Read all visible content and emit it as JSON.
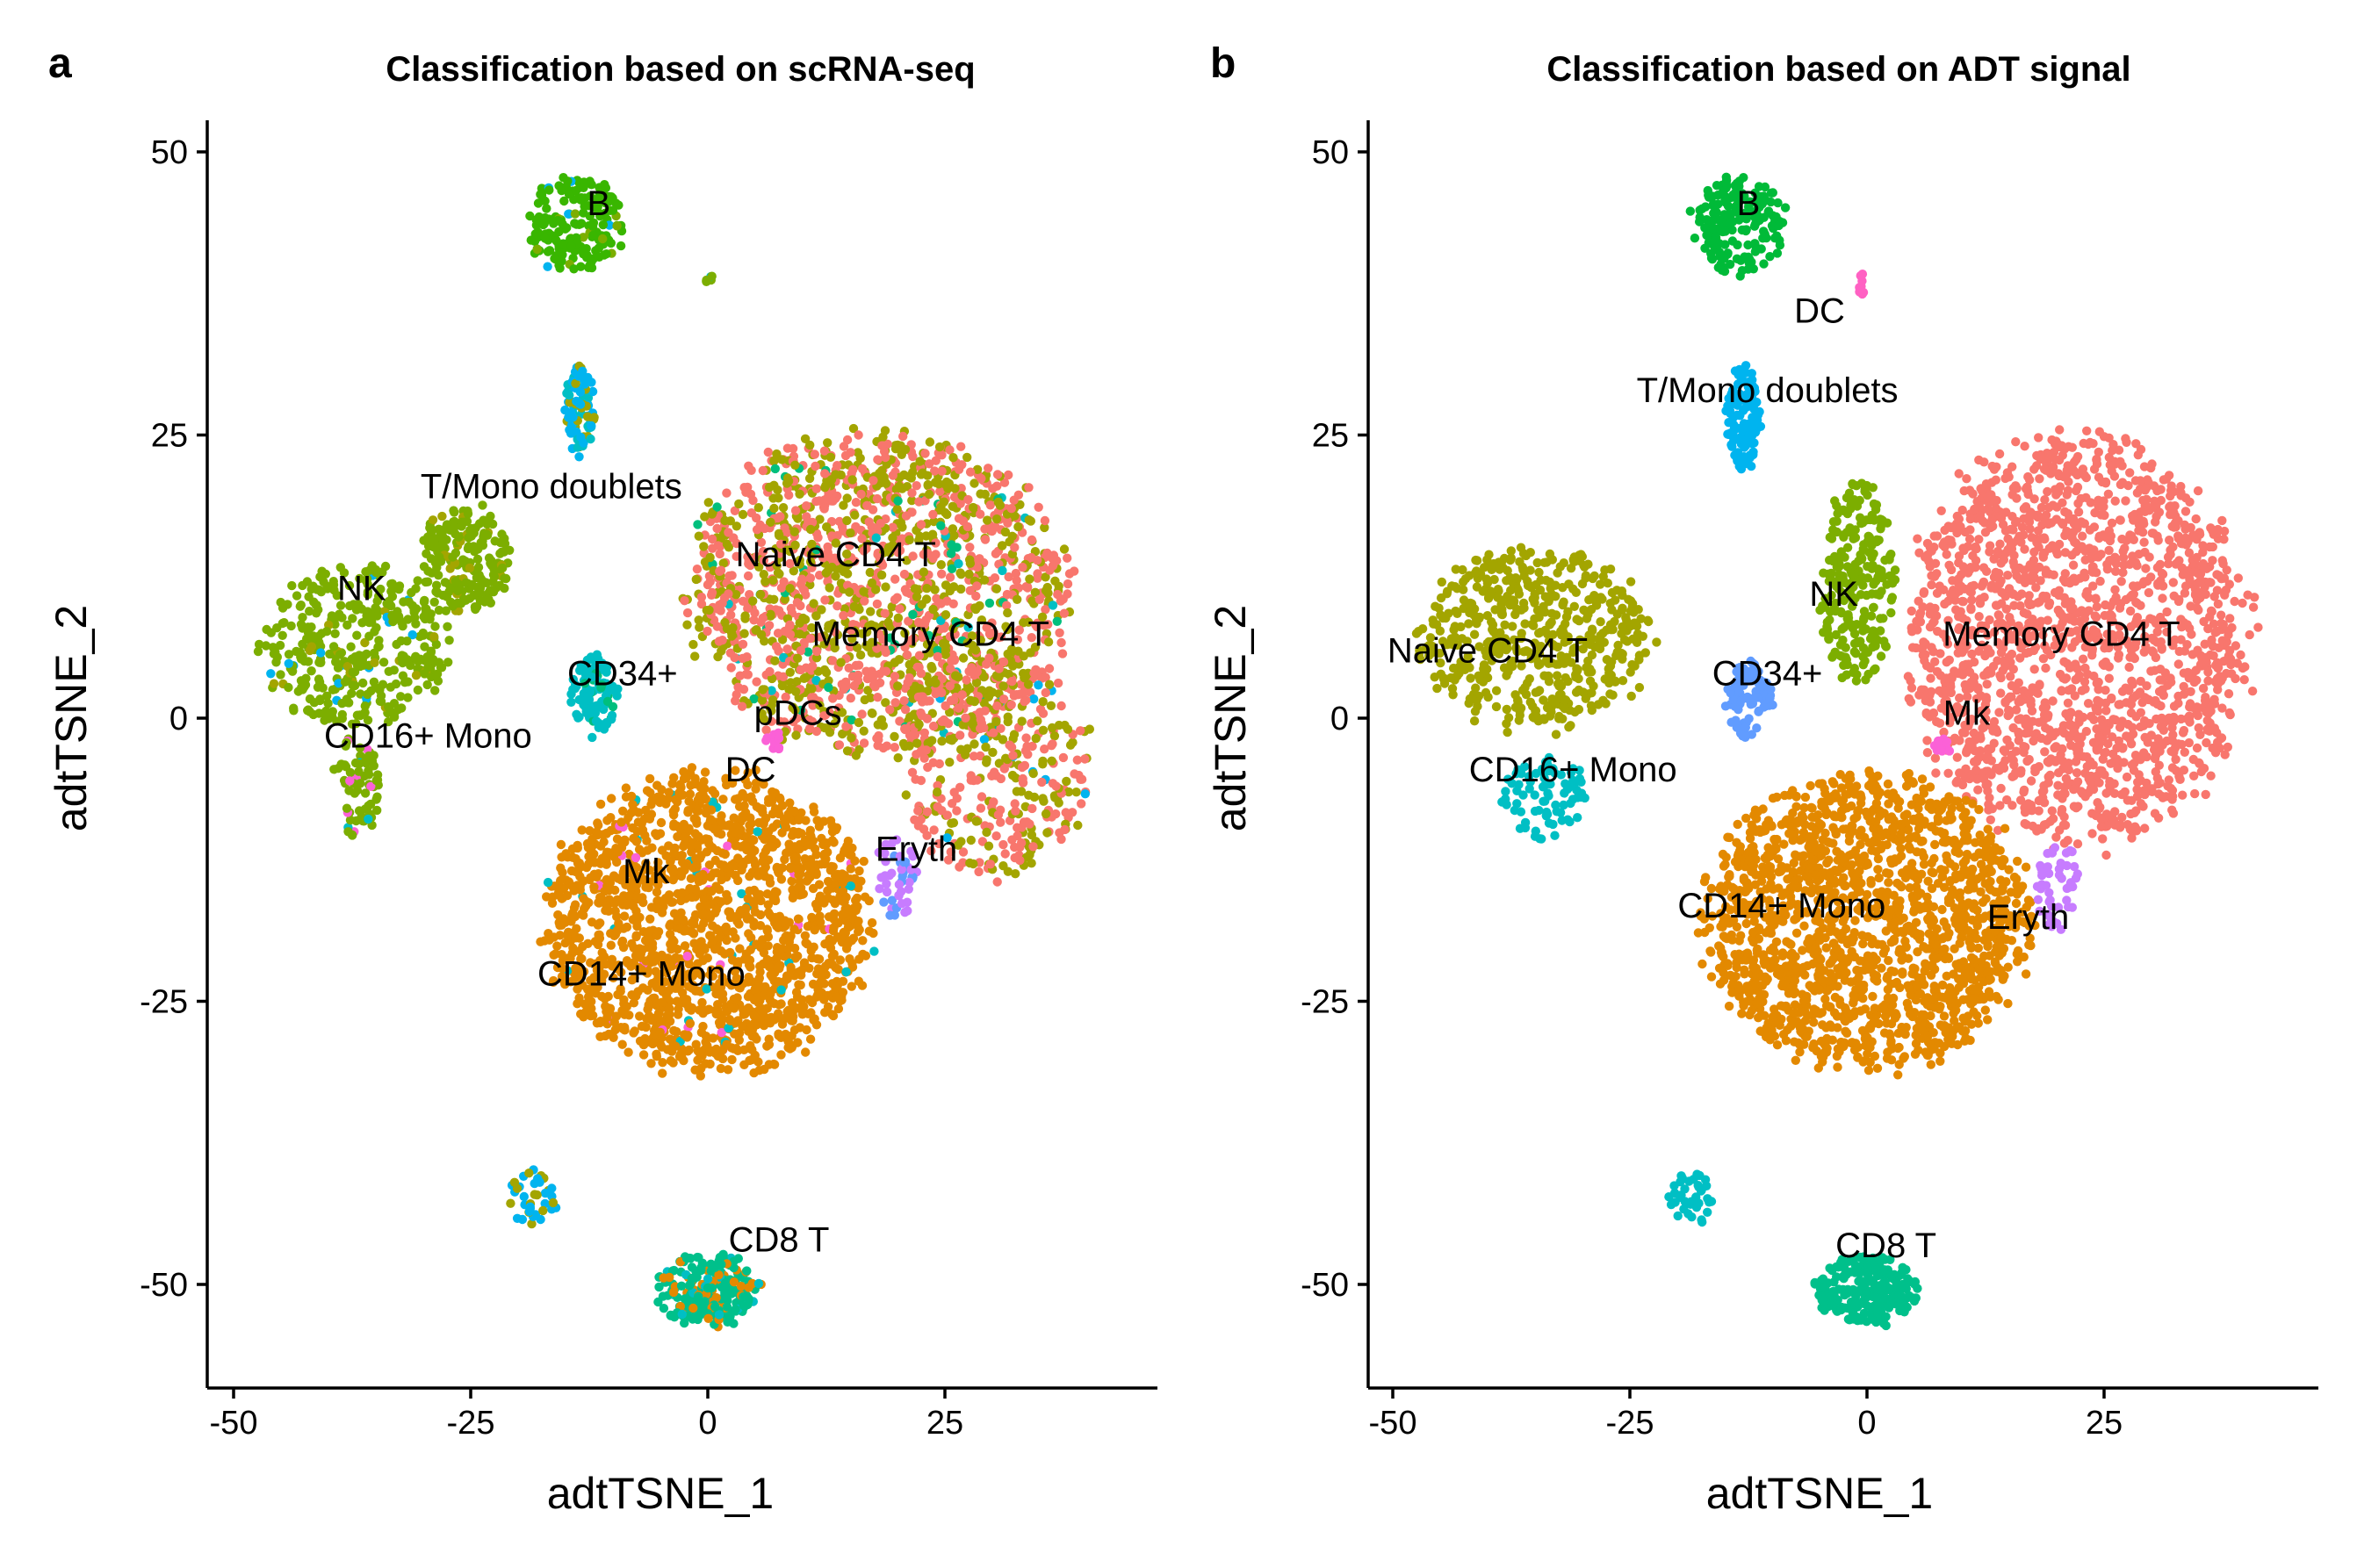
{
  "chart_data": [
    {
      "panel_letter": "a",
      "type": "scatter",
      "title": "Classification based on scRNA-seq",
      "xlabel": "adtTSNE_1",
      "ylabel": "adtTSNE_2",
      "xlim": [
        -52,
        48
      ],
      "ylim": [
        -59,
        53
      ],
      "xticks": [
        -50,
        -25,
        0,
        25
      ],
      "xtick_labels": [
        "-50",
        "-25",
        "0",
        "25"
      ],
      "yticks": [
        -50,
        -25,
        0,
        25,
        50
      ],
      "ytick_labels": [
        "-50",
        "-25",
        "0",
        "25",
        "50"
      ],
      "grid": false,
      "legend": "none",
      "cluster_labels": [
        {
          "text": "B",
          "x": -11.5,
          "y": 45.5
        },
        {
          "text": "T/Mono doublets",
          "x": -16.5,
          "y": 20.5
        },
        {
          "text": "NK",
          "x": -36.5,
          "y": 11.5
        },
        {
          "text": "Naive CD4 T",
          "x": 13.5,
          "y": 14.5
        },
        {
          "text": "Memory CD4 T",
          "x": 23.5,
          "y": 7.5
        },
        {
          "text": "CD34+",
          "x": -9,
          "y": 4
        },
        {
          "text": "pDCs",
          "x": 9.5,
          "y": 0.5
        },
        {
          "text": "CD16+ Mono",
          "x": -29.5,
          "y": -1.5
        },
        {
          "text": "DC",
          "x": 4.5,
          "y": -4.5
        },
        {
          "text": "Eryth",
          "x": 22,
          "y": -11.5
        },
        {
          "text": "Mk",
          "x": -6.5,
          "y": -13.5
        },
        {
          "text": "CD14+ Mono",
          "x": -7,
          "y": -22.5
        },
        {
          "text": "CD8 T",
          "x": 7.5,
          "y": -46
        }
      ],
      "clusters": [
        {
          "name": "B",
          "cx": -14,
          "cy": 43.5,
          "rx": 5,
          "ry": 4.3,
          "n": 180,
          "colors": [
            [
              "#39B600",
              0.9
            ],
            [
              "#7CAE00",
              0.08
            ],
            [
              "#00B4EF",
              0.02
            ]
          ]
        },
        {
          "name": "B small",
          "cx": 0,
          "cy": 39,
          "rx": 0.5,
          "ry": 0.6,
          "n": 5,
          "colors": [
            [
              "#7CAE00",
              0.6
            ],
            [
              "#00BFC4",
              0.4
            ]
          ]
        },
        {
          "name": "T/Mono doublets",
          "cx": -13.5,
          "cy": 27,
          "rx": 1.8,
          "ry": 4,
          "n": 90,
          "colors": [
            [
              "#00B4EF",
              0.45
            ],
            [
              "#A3A500",
              0.35
            ],
            [
              "#00BFC4",
              0.2
            ]
          ]
        },
        {
          "name": "Naive + Memory CD4 T",
          "cx": 18,
          "cy": 11,
          "rx": 20,
          "ry": 14,
          "n": 1600,
          "colors": [
            [
              "#F8766D",
              0.5
            ],
            [
              "#A3A500",
              0.45
            ],
            [
              "#00BF7D",
              0.03
            ],
            [
              "#00BFC4",
              0.02
            ]
          ]
        },
        {
          "name": "CD4 T lower right",
          "cx": 30,
          "cy": -4,
          "rx": 10,
          "ry": 10,
          "n": 360,
          "colors": [
            [
              "#F8766D",
              0.55
            ],
            [
              "#A3A500",
              0.43
            ],
            [
              "#00B4EF",
              0.02
            ]
          ]
        },
        {
          "name": "NK",
          "cx": -37,
          "cy": 6.5,
          "rx": 10,
          "ry": 7,
          "n": 380,
          "colors": [
            [
              "#7CAE00",
              0.92
            ],
            [
              "#A3A500",
              0.05
            ],
            [
              "#00B4EF",
              0.03
            ]
          ]
        },
        {
          "name": "NK upper",
          "cx": -25.5,
          "cy": 14,
          "rx": 4.5,
          "ry": 5,
          "n": 200,
          "colors": [
            [
              "#7CAE00",
              0.9
            ],
            [
              "#A3A500",
              0.1
            ]
          ]
        },
        {
          "name": "NK tail",
          "cx": -37,
          "cy": -6,
          "rx": 2.5,
          "ry": 4.5,
          "n": 70,
          "colors": [
            [
              "#7CAE00",
              0.85
            ],
            [
              "#FB61D7",
              0.08
            ],
            [
              "#00BFC4",
              0.07
            ]
          ]
        },
        {
          "name": "CD34+",
          "cx": -12,
          "cy": 2,
          "rx": 2.5,
          "ry": 3.5,
          "n": 100,
          "colors": [
            [
              "#00BFC4",
              0.8
            ],
            [
              "#00BF7D",
              0.2
            ]
          ]
        },
        {
          "name": "pDCs",
          "cx": 7,
          "cy": -2,
          "rx": 1,
          "ry": 1,
          "n": 15,
          "colors": [
            [
              "#FB61D7",
              1
            ]
          ]
        },
        {
          "name": "CD14+ Mono",
          "cx": 0,
          "cy": -18,
          "rx": 17,
          "ry": 13,
          "n": 1700,
          "colors": [
            [
              "#E38900",
              0.97
            ],
            [
              "#FB61D7",
              0.015
            ],
            [
              "#00BFC4",
              0.015
            ]
          ]
        },
        {
          "name": "Eryth",
          "cx": 20,
          "cy": -14,
          "rx": 2.2,
          "ry": 4,
          "n": 50,
          "colors": [
            [
              "#C77CFF",
              0.7
            ],
            [
              "#619CFF",
              0.3
            ]
          ]
        },
        {
          "name": "CD8 T",
          "cx": 0,
          "cy": -50.5,
          "rx": 5.5,
          "ry": 3.2,
          "n": 220,
          "colors": [
            [
              "#00C08B",
              0.7
            ],
            [
              "#E38900",
              0.2
            ],
            [
              "#00BFC4",
              0.1
            ]
          ]
        },
        {
          "name": "bottom streak",
          "cx": -18.5,
          "cy": -42.5,
          "rx": 2.5,
          "ry": 2.5,
          "n": 40,
          "colors": [
            [
              "#00B4EF",
              0.7
            ],
            [
              "#A3A500",
              0.3
            ]
          ]
        }
      ]
    },
    {
      "panel_letter": "b",
      "type": "scatter",
      "title": "Classification based on ADT signal",
      "xlabel": "adtTSNE_1",
      "ylabel": "adtTSNE_2",
      "xlim": [
        -52,
        48
      ],
      "ylim": [
        -59,
        53
      ],
      "xticks": [
        -50,
        -25,
        0,
        25
      ],
      "xtick_labels": [
        "-50",
        "-25",
        "0",
        "25"
      ],
      "yticks": [
        -50,
        -25,
        0,
        25,
        50
      ],
      "ytick_labels": [
        "-50",
        "-25",
        "0",
        "25",
        "50"
      ],
      "grid": false,
      "legend": "none",
      "cluster_labels": [
        {
          "text": "B",
          "x": -12.5,
          "y": 45.5
        },
        {
          "text": "DC",
          "x": -5,
          "y": 36
        },
        {
          "text": "T/Mono doublets",
          "x": -10.5,
          "y": 29
        },
        {
          "text": "NK",
          "x": -3.5,
          "y": 11
        },
        {
          "text": "Memory CD4 T",
          "x": 20.5,
          "y": 7.5
        },
        {
          "text": "Naive CD4 T",
          "x": -40,
          "y": 6
        },
        {
          "text": "CD34+",
          "x": -10.5,
          "y": 4
        },
        {
          "text": "Mk",
          "x": 10.5,
          "y": 0.5
        },
        {
          "text": "CD16+ Mono",
          "x": -31,
          "y": -4.5
        },
        {
          "text": "CD14+ Mono",
          "x": -9,
          "y": -16.5
        },
        {
          "text": "Eryth",
          "x": 17,
          "y": -17.5
        },
        {
          "text": "CD8 T",
          "x": 2,
          "y": -46.5
        }
      ],
      "clusters": [
        {
          "name": "B",
          "cx": -13.5,
          "cy": 43.5,
          "rx": 5,
          "ry": 4.3,
          "n": 180,
          "colors": [
            [
              "#00BA38",
              1
            ]
          ]
        },
        {
          "name": "DC",
          "cx": -0.5,
          "cy": 38.5,
          "rx": 0.5,
          "ry": 1,
          "n": 10,
          "colors": [
            [
              "#FF61C3",
              1
            ]
          ]
        },
        {
          "name": "T/Mono doublets",
          "cx": -13,
          "cy": 26.5,
          "rx": 1.8,
          "ry": 4.5,
          "n": 110,
          "colors": [
            [
              "#00B4EF",
              1
            ]
          ]
        },
        {
          "name": "NK",
          "cx": -1,
          "cy": 12,
          "rx": 4,
          "ry": 9,
          "n": 250,
          "colors": [
            [
              "#7CAE00",
              1
            ]
          ]
        },
        {
          "name": "Memory CD4 T",
          "cx": 22,
          "cy": 7,
          "rx": 18,
          "ry": 18,
          "n": 1800,
          "colors": [
            [
              "#F8766D",
              1
            ]
          ]
        },
        {
          "name": "Naive CD4 T",
          "cx": -35,
          "cy": 7,
          "rx": 12,
          "ry": 8,
          "n": 550,
          "colors": [
            [
              "#A3A500",
              1
            ]
          ]
        },
        {
          "name": "CD34+",
          "cx": -12.5,
          "cy": 1.5,
          "rx": 2.5,
          "ry": 3.5,
          "n": 90,
          "colors": [
            [
              "#619CFF",
              1
            ]
          ]
        },
        {
          "name": "Mk",
          "cx": 8,
          "cy": -2.5,
          "rx": 1,
          "ry": 0.7,
          "n": 15,
          "colors": [
            [
              "#FB61D7",
              1
            ]
          ]
        },
        {
          "name": "CD16+ Mono",
          "cx": -34,
          "cy": -7,
          "rx": 4.5,
          "ry": 3.5,
          "n": 80,
          "colors": [
            [
              "#00BFC4",
              1
            ]
          ]
        },
        {
          "name": "CD14+ Mono",
          "cx": 0,
          "cy": -18,
          "rx": 17,
          "ry": 13,
          "n": 1700,
          "colors": [
            [
              "#E38900",
              1
            ]
          ]
        },
        {
          "name": "Eryth",
          "cx": 20,
          "cy": -14.5,
          "rx": 2.2,
          "ry": 4,
          "n": 50,
          "colors": [
            [
              "#C77CFF",
              1
            ]
          ]
        },
        {
          "name": "CD8 T",
          "cx": 0,
          "cy": -50.5,
          "rx": 5.5,
          "ry": 3.2,
          "n": 220,
          "colors": [
            [
              "#00C08B",
              1
            ]
          ]
        },
        {
          "name": "bottom streak",
          "cx": -18.5,
          "cy": -42.5,
          "rx": 2.5,
          "ry": 2.5,
          "n": 40,
          "colors": [
            [
              "#00BFC4",
              1
            ]
          ]
        }
      ]
    }
  ]
}
